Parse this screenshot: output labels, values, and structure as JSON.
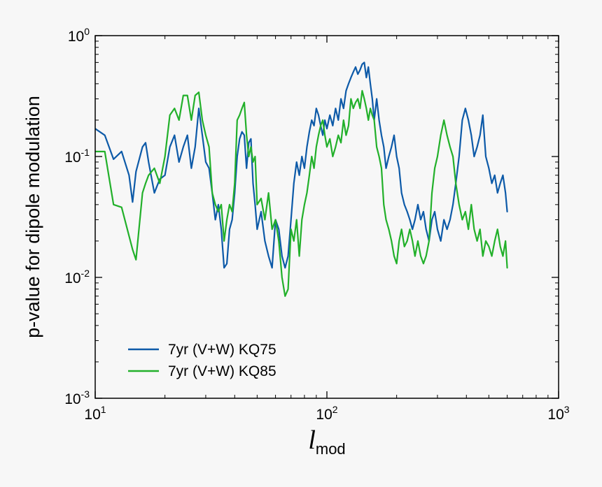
{
  "chart_data": {
    "type": "line",
    "title": "",
    "xscale": "log",
    "yscale": "log",
    "xlim": [
      10,
      1000
    ],
    "ylim": [
      0.001,
      1
    ],
    "xlabel_main": "l",
    "xlabel_sub": "mod",
    "ylabel": "p-value for dipole modulation",
    "xticks": [
      {
        "value": 10,
        "base": "10",
        "exp": "1"
      },
      {
        "value": 100,
        "base": "10",
        "exp": "2"
      },
      {
        "value": 1000,
        "base": "10",
        "exp": "3"
      }
    ],
    "yticks": [
      {
        "value": 0.001,
        "base": "10",
        "exp": "-3"
      },
      {
        "value": 0.01,
        "base": "10",
        "exp": "-2"
      },
      {
        "value": 0.1,
        "base": "10",
        "exp": "-1"
      },
      {
        "value": 1,
        "base": "10",
        "exp": "0"
      }
    ],
    "legend_position": "lower-left",
    "series": [
      {
        "name": "7yr (V+W) KQ75",
        "color": "#0d5aa8",
        "x": [
          10,
          11,
          12,
          13,
          14,
          14.5,
          15,
          16,
          16.5,
          17,
          18,
          19,
          20,
          21,
          22,
          23,
          24,
          25,
          26,
          27,
          28,
          29,
          30,
          31,
          32,
          33,
          34,
          35,
          36,
          37,
          38,
          39,
          40,
          41,
          42,
          43,
          44,
          45,
          46,
          47,
          48,
          49,
          50,
          52,
          54,
          56,
          58,
          60,
          62,
          64,
          66,
          68,
          70,
          72,
          74,
          76,
          78,
          80,
          82,
          84,
          86,
          88,
          90,
          92,
          94,
          96,
          98,
          100,
          103,
          106,
          109,
          112,
          115,
          118,
          121,
          124,
          127,
          130,
          133,
          136,
          139,
          142,
          145,
          148,
          151,
          154,
          157,
          160,
          164,
          168,
          172,
          176,
          180,
          185,
          190,
          195,
          200,
          205,
          210,
          216,
          222,
          228,
          234,
          240,
          247,
          254,
          261,
          268,
          276,
          284,
          292,
          300,
          310,
          320,
          330,
          340,
          350,
          360,
          372,
          384,
          396,
          408,
          420,
          432,
          445,
          458,
          471,
          485,
          500,
          515,
          530,
          545,
          560,
          575,
          590,
          600
        ],
        "y": [
          0.17,
          0.15,
          0.095,
          0.11,
          0.07,
          0.042,
          0.075,
          0.12,
          0.13,
          0.09,
          0.05,
          0.065,
          0.07,
          0.12,
          0.15,
          0.09,
          0.12,
          0.15,
          0.08,
          0.12,
          0.25,
          0.15,
          0.09,
          0.08,
          0.05,
          0.03,
          0.04,
          0.025,
          0.012,
          0.013,
          0.025,
          0.03,
          0.05,
          0.1,
          0.14,
          0.16,
          0.15,
          0.08,
          0.13,
          0.14,
          0.06,
          0.04,
          0.025,
          0.035,
          0.02,
          0.015,
          0.012,
          0.03,
          0.025,
          0.015,
          0.012,
          0.015,
          0.03,
          0.06,
          0.09,
          0.07,
          0.1,
          0.08,
          0.12,
          0.16,
          0.2,
          0.18,
          0.25,
          0.22,
          0.18,
          0.15,
          0.2,
          0.17,
          0.22,
          0.18,
          0.25,
          0.2,
          0.3,
          0.25,
          0.35,
          0.4,
          0.45,
          0.5,
          0.55,
          0.48,
          0.52,
          0.58,
          0.6,
          0.45,
          0.55,
          0.4,
          0.3,
          0.2,
          0.3,
          0.2,
          0.15,
          0.12,
          0.08,
          0.1,
          0.12,
          0.15,
          0.1,
          0.08,
          0.05,
          0.04,
          0.035,
          0.03,
          0.025,
          0.03,
          0.04,
          0.03,
          0.035,
          0.025,
          0.02,
          0.03,
          0.035,
          0.025,
          0.02,
          0.03,
          0.025,
          0.03,
          0.04,
          0.06,
          0.1,
          0.2,
          0.25,
          0.2,
          0.15,
          0.1,
          0.12,
          0.15,
          0.22,
          0.1,
          0.08,
          0.06,
          0.07,
          0.05,
          0.06,
          0.07,
          0.05,
          0.035
        ]
      },
      {
        "name": "7yr (V+W) KQ85",
        "color": "#22b02a",
        "x": [
          10,
          11,
          12,
          13,
          14,
          14.5,
          15,
          16,
          16.5,
          17,
          18,
          19,
          20,
          21,
          22,
          23,
          24,
          25,
          26,
          27,
          28,
          29,
          30,
          31,
          32,
          33,
          34,
          35,
          36,
          37,
          38,
          39,
          40,
          41,
          42,
          43,
          44,
          45,
          46,
          47,
          48,
          49,
          50,
          52,
          54,
          56,
          58,
          60,
          62,
          64,
          66,
          68,
          70,
          72,
          74,
          76,
          78,
          80,
          82,
          84,
          86,
          88,
          90,
          92,
          94,
          96,
          98,
          100,
          103,
          106,
          109,
          112,
          115,
          118,
          121,
          124,
          127,
          130,
          133,
          136,
          139,
          142,
          145,
          148,
          151,
          154,
          157,
          160,
          164,
          168,
          172,
          176,
          180,
          185,
          190,
          195,
          200,
          205,
          210,
          216,
          222,
          228,
          234,
          240,
          247,
          254,
          261,
          268,
          276,
          284,
          292,
          300,
          310,
          320,
          330,
          340,
          350,
          360,
          372,
          384,
          396,
          408,
          420,
          432,
          445,
          458,
          471,
          485,
          500,
          515,
          530,
          545,
          560,
          575,
          590,
          600
        ],
        "y": [
          0.11,
          0.11,
          0.04,
          0.038,
          0.022,
          0.017,
          0.014,
          0.05,
          0.06,
          0.07,
          0.08,
          0.06,
          0.1,
          0.22,
          0.25,
          0.2,
          0.32,
          0.32,
          0.2,
          0.32,
          0.34,
          0.2,
          0.15,
          0.12,
          0.05,
          0.04,
          0.035,
          0.04,
          0.02,
          0.03,
          0.04,
          0.035,
          0.06,
          0.2,
          0.22,
          0.25,
          0.28,
          0.15,
          0.1,
          0.12,
          0.09,
          0.1,
          0.04,
          0.045,
          0.03,
          0.05,
          0.025,
          0.03,
          0.02,
          0.01,
          0.007,
          0.008,
          0.025,
          0.02,
          0.03,
          0.015,
          0.03,
          0.04,
          0.05,
          0.07,
          0.1,
          0.08,
          0.12,
          0.15,
          0.18,
          0.2,
          0.15,
          0.12,
          0.14,
          0.1,
          0.12,
          0.15,
          0.13,
          0.2,
          0.15,
          0.18,
          0.3,
          0.25,
          0.28,
          0.3,
          0.25,
          0.35,
          0.3,
          0.25,
          0.2,
          0.25,
          0.22,
          0.2,
          0.12,
          0.1,
          0.08,
          0.04,
          0.03,
          0.025,
          0.02,
          0.015,
          0.013,
          0.02,
          0.025,
          0.018,
          0.02,
          0.025,
          0.02,
          0.015,
          0.02,
          0.015,
          0.013,
          0.015,
          0.02,
          0.05,
          0.08,
          0.1,
          0.15,
          0.2,
          0.15,
          0.12,
          0.1,
          0.06,
          0.04,
          0.03,
          0.035,
          0.025,
          0.04,
          0.025,
          0.02,
          0.025,
          0.015,
          0.02,
          0.018,
          0.015,
          0.02,
          0.025,
          0.018,
          0.015,
          0.02,
          0.012
        ]
      }
    ]
  }
}
